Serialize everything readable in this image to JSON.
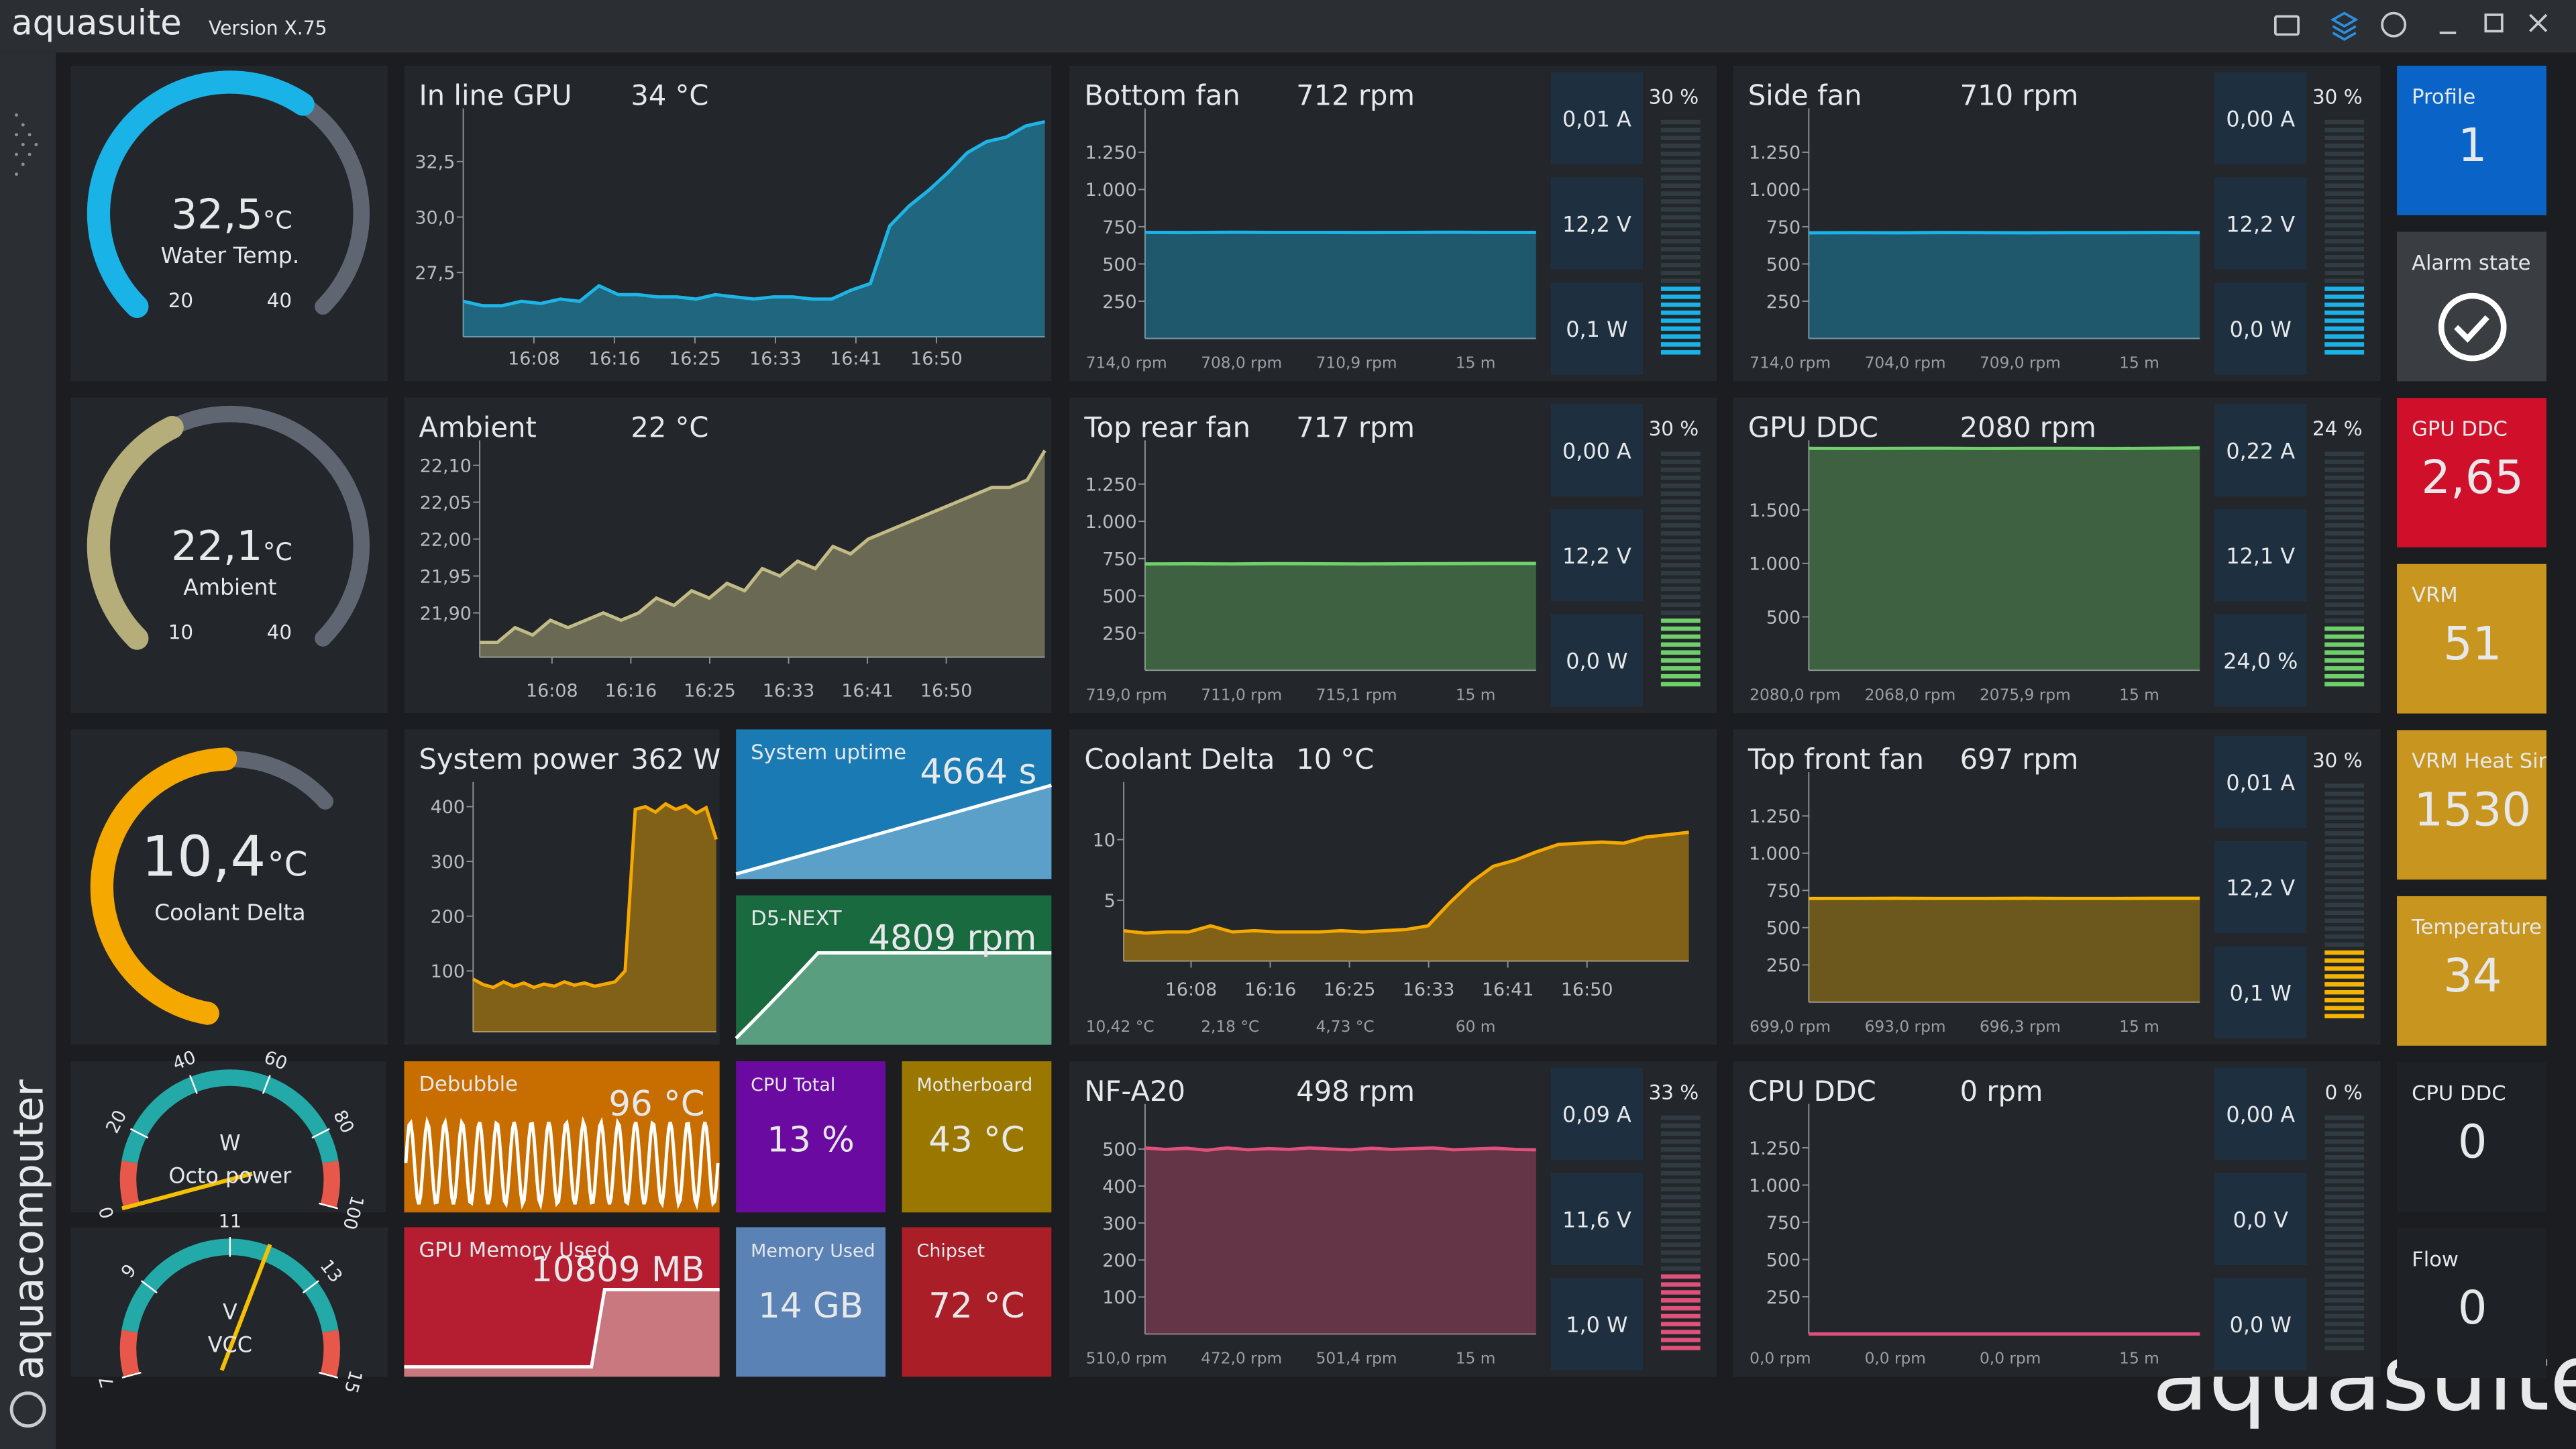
{
  "header": {
    "app": "aquasuite",
    "version": "Version X.75"
  },
  "sidebar": {
    "brand": "aquacomputer"
  },
  "watermark": "aquasuite",
  "gauges": [
    {
      "value": 32.5,
      "value_label": "32,5",
      "unit": "°C",
      "label": "Water Temp.",
      "min": 20,
      "max": 40,
      "color": "#1ab3e8"
    },
    {
      "value": 22.1,
      "value_label": "22,1",
      "unit": "°C",
      "label": "Ambient",
      "min": 10,
      "max": 40,
      "color": "#b5ae7a"
    },
    {
      "value_label": "10,4",
      "unit": "°C",
      "label": "Coolant Delta",
      "color": "#f5a800"
    }
  ],
  "dials": [
    {
      "label": "Octo power",
      "unit": "W",
      "ticks": [
        0,
        20,
        40,
        60,
        80,
        100
      ],
      "value": 0
    },
    {
      "label": "VCC",
      "unit": "V",
      "ticks": [
        7,
        9,
        11,
        13,
        15
      ],
      "value": 11.8
    }
  ],
  "line_charts": [
    {
      "title": "In line GPU",
      "value_label": "34 °C",
      "color": "#1eb4e6",
      "ylim": [
        24.6,
        34.6
      ],
      "yticks": [
        {
          "value": 27.5,
          "label": "27,5"
        },
        {
          "value": 30,
          "label": "30,0"
        },
        {
          "value": 32.5,
          "label": "32,5"
        }
      ],
      "xlabels": [
        "16:08",
        "16:16",
        "16:25",
        "16:33",
        "16:41",
        "16:50"
      ],
      "values": [
        26.2,
        26.0,
        26.0,
        26.2,
        26.1,
        26.3,
        26.2,
        26.9,
        26.5,
        26.5,
        26.4,
        26.4,
        26.3,
        26.5,
        26.4,
        26.3,
        26.4,
        26.4,
        26.3,
        26.3,
        26.7,
        27.0,
        29.6,
        30.5,
        31.2,
        32.0,
        32.9,
        33.4,
        33.6,
        34.1,
        34.3
      ]
    },
    {
      "title": "Ambient",
      "value_label": "22 °C",
      "color": "#c2bb86",
      "ylim": [
        21.84,
        22.125
      ],
      "yticks": [
        {
          "value": 21.9,
          "label": "21,90"
        },
        {
          "value": 21.95,
          "label": "21,95"
        },
        {
          "value": 22,
          "label": "22,00"
        },
        {
          "value": 22.05,
          "label": "22,05"
        },
        {
          "value": 22.1,
          "label": "22,10"
        }
      ],
      "xlabels": [
        "16:08",
        "16:16",
        "16:25",
        "16:33",
        "16:41",
        "16:50"
      ],
      "values": [
        21.86,
        21.86,
        21.88,
        21.87,
        21.89,
        21.88,
        21.89,
        21.9,
        21.89,
        21.9,
        21.92,
        21.91,
        21.93,
        21.92,
        21.94,
        21.93,
        21.96,
        21.95,
        21.97,
        21.96,
        21.99,
        21.98,
        22.0,
        22.01,
        22.02,
        22.03,
        22.04,
        22.05,
        22.06,
        22.07,
        22.07,
        22.08,
        22.12
      ]
    },
    {
      "title": "System power",
      "value_label": "362 W",
      "color": "#f5a800",
      "ylim": [
        -11,
        433
      ],
      "yticks": [
        100,
        200,
        300,
        400
      ],
      "values": [
        85,
        75,
        70,
        80,
        72,
        78,
        70,
        76,
        72,
        80,
        74,
        78,
        72,
        76,
        80,
        100,
        395,
        400,
        390,
        405,
        395,
        402,
        388,
        398,
        340
      ]
    },
    {
      "title": "Coolant Delta",
      "value_label": "10 °C",
      "color": "#f5a800",
      "ylim": [
        0,
        14.2
      ],
      "yticks": [
        5,
        10
      ],
      "xlabels": [
        "16:08",
        "16:16",
        "16:25",
        "16:33",
        "16:41",
        "16:50"
      ],
      "values": [
        2.5,
        2.3,
        2.4,
        2.4,
        2.9,
        2.4,
        2.5,
        2.4,
        2.4,
        2.4,
        2.5,
        2.4,
        2.5,
        2.6,
        2.9,
        4.8,
        6.5,
        7.8,
        8.3,
        9.0,
        9.6,
        9.7,
        9.8,
        9.7,
        10.2,
        10.4,
        10.6
      ],
      "footer": [
        "10,42 °C",
        "2,18 °C",
        "4,73 °C",
        "60 m"
      ]
    }
  ],
  "fans": [
    {
      "title": "Bottom fan",
      "value_label": "712 rpm",
      "color": "#1ab3e8",
      "ylim": [
        0,
        1500
      ],
      "yticks": [
        250,
        500,
        750,
        {
          "value": 1000,
          "label": "1.000"
        },
        {
          "value": 1250,
          "label": "1.250"
        }
      ],
      "values": [
        712,
        711,
        713,
        712,
        712,
        711,
        712,
        713,
        712,
        712
      ],
      "stats": [
        "0,01 A",
        "12,2 V",
        "0,1 W"
      ],
      "percent": 30,
      "percent_label": "30 %",
      "footer": [
        "714,0 rpm",
        "708,0 rpm",
        "710,9 rpm",
        "15 m"
      ]
    },
    {
      "title": "Side fan",
      "value_label": "710 rpm",
      "color": "#1ab3e8",
      "ylim": [
        0,
        1500
      ],
      "yticks": [
        250,
        500,
        750,
        {
          "value": 1000,
          "label": "1.000"
        },
        {
          "value": 1250,
          "label": "1.250"
        }
      ],
      "values": [
        709,
        710,
        709,
        711,
        710,
        709,
        710,
        710,
        711,
        710
      ],
      "stats": [
        "0,00 A",
        "12,2 V",
        "0,0 W"
      ],
      "percent": 30,
      "percent_label": "30 %",
      "footer": [
        "714,0 rpm",
        "704,0 rpm",
        "709,0 rpm",
        "15 m"
      ]
    },
    {
      "title": "Top rear fan",
      "value_label": "717 rpm",
      "color": "#6fcf6a",
      "ylim": [
        0,
        1500
      ],
      "yticks": [
        250,
        500,
        750,
        {
          "value": 1000,
          "label": "1.000"
        },
        {
          "value": 1250,
          "label": "1.250"
        }
      ],
      "values": [
        714,
        715,
        714,
        716,
        715,
        714,
        715,
        716,
        717,
        717
      ],
      "stats": [
        "0,00 A",
        "12,2 V",
        "0,0 W"
      ],
      "percent": 30,
      "percent_label": "30 %",
      "footer": [
        "719,0 rpm",
        "711,0 rpm",
        "715,1 rpm",
        "15 m"
      ]
    },
    {
      "title": "GPU DDC",
      "value_label": "2080 rpm",
      "color": "#6fcf6a",
      "ylim": [
        0,
        2090
      ],
      "yticks": [
        500,
        {
          "value": 1000,
          "label": "1.000"
        },
        {
          "value": 1500,
          "label": "1.500"
        }
      ],
      "values": [
        2076,
        2075,
        2076,
        2077,
        2075,
        2076,
        2076,
        2075,
        2077,
        2080
      ],
      "stats": [
        "0,22 A",
        "12,1 V",
        "24,0 %"
      ],
      "percent": 24,
      "percent_label": "24 %",
      "footer": [
        "2080,0 rpm",
        "2068,0 rpm",
        "2075,9 rpm",
        "15 m"
      ]
    },
    {
      "title": "Top front fan",
      "value_label": "697 rpm",
      "color": "#f5b400",
      "ylim": [
        0,
        1500
      ],
      "yticks": [
        250,
        500,
        750,
        {
          "value": 1000,
          "label": "1.000"
        },
        {
          "value": 1250,
          "label": "1.250"
        }
      ],
      "values": [
        696,
        696,
        697,
        696,
        696,
        697,
        696,
        696,
        697,
        697
      ],
      "stats": [
        "0,01 A",
        "12,2 V",
        "0,1 W"
      ],
      "percent": 30,
      "percent_label": "30 %",
      "footer": [
        "699,0 rpm",
        "693,0 rpm",
        "696,3 rpm",
        "15 m"
      ]
    },
    {
      "title": "NF-A20",
      "value_label": "498 rpm",
      "color": "#e0507a",
      "ylim": [
        0,
        604
      ],
      "yticks": [
        100,
        200,
        300,
        400,
        500
      ],
      "values": [
        503,
        499,
        502,
        497,
        503,
        498,
        501,
        499,
        503,
        500,
        498,
        502,
        499,
        501,
        503,
        498,
        500,
        502,
        499,
        498
      ],
      "stats": [
        "0,09 A",
        "11,6 V",
        "1,0 W"
      ],
      "percent": 33,
      "percent_label": "33 %",
      "footer": [
        "510,0 rpm",
        "472,0 rpm",
        "501,4 rpm",
        "15 m"
      ]
    },
    {
      "title": "CPU DDC",
      "value_label": "0 rpm",
      "color": "#e0507a",
      "ylim": [
        0,
        1500
      ],
      "yticks": [
        250,
        500,
        750,
        {
          "value": 1000,
          "label": "1.000"
        },
        {
          "value": 1250,
          "label": "1.250"
        }
      ],
      "values": [
        0,
        0,
        0,
        0,
        0,
        0,
        0,
        0,
        0,
        0
      ],
      "stats": [
        "0,00 A",
        "0,0 V",
        "0,0 W"
      ],
      "percent": 0,
      "percent_label": "0 %",
      "footer": [
        "0,0 rpm",
        "0,0 rpm",
        "0,0 rpm",
        "15 m"
      ]
    }
  ],
  "tiles": [
    {
      "title": "Profile",
      "value": "1"
    },
    {
      "title": "Alarm state"
    },
    {
      "title": "GPU DDC",
      "value": "2,65"
    },
    {
      "title": "VRM",
      "value": "51"
    },
    {
      "title": "VRM Heat Sink",
      "value": "1530"
    },
    {
      "title": "Temperature",
      "value": "34"
    },
    {
      "title": "CPU DDC",
      "value": "0"
    },
    {
      "title": "Flow",
      "value": "0"
    }
  ],
  "small_tiles": [
    {
      "title": "System uptime",
      "value": "4664 s"
    },
    {
      "title": "D5-NEXT",
      "value": "4809 rpm"
    },
    {
      "title": "Debubble",
      "value": "96 °C"
    },
    {
      "title": "GPU Memory Used",
      "value": "10809 MB"
    },
    {
      "title": "CPU Total",
      "value": "13 %"
    },
    {
      "title": "Motherboard",
      "value": "43 °C"
    },
    {
      "title": "Memory Used",
      "value": "14 GB"
    },
    {
      "title": "Chipset",
      "value": "72 °C"
    }
  ]
}
